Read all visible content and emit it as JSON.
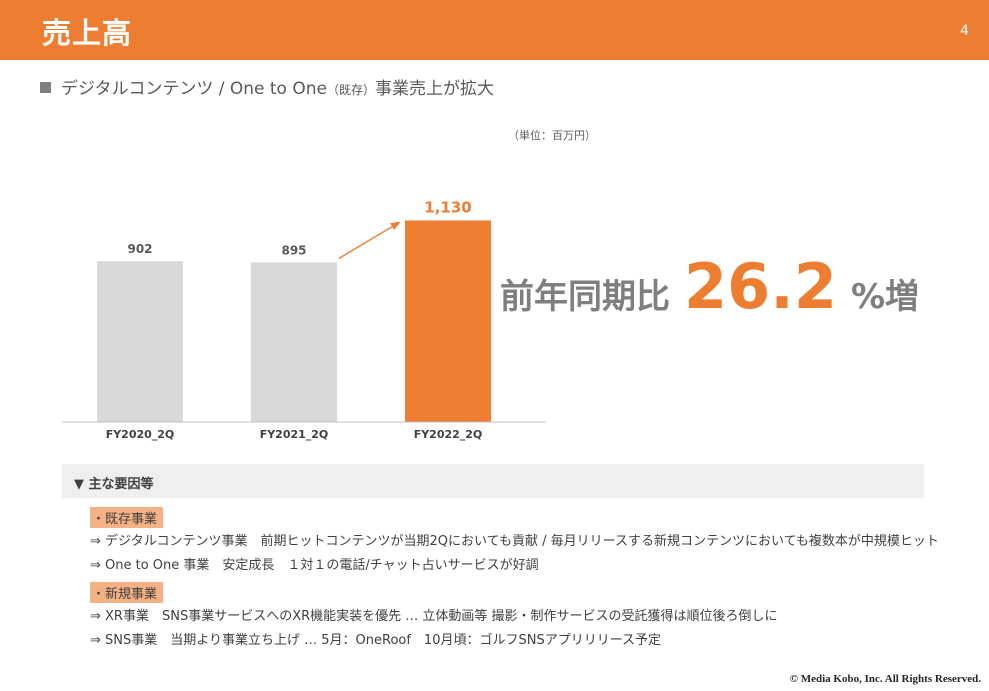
{
  "header": {
    "title": "売上高",
    "page_number": "4",
    "accent_color": "#ed7d31"
  },
  "subtitle": {
    "main": "デジタルコンテンツ / One to One",
    "small": "（既存）",
    "rest": "事業売上が拡大"
  },
  "unit_label": "（単位：百万円）",
  "chart_data": {
    "type": "bar",
    "categories": [
      "FY2020_2Q",
      "FY2021_2Q",
      "FY2022_2Q"
    ],
    "values": [
      902,
      895,
      1130
    ],
    "value_labels": [
      "902",
      "895",
      "1,130"
    ],
    "ylim": [
      0,
      1200
    ],
    "colors": [
      "#d9d9d9",
      "#d9d9d9",
      "#ed7d31"
    ],
    "highlight_index": 2,
    "grid": false,
    "xlabel": "",
    "ylabel": ""
  },
  "yoy": {
    "lead": "前年同期比",
    "value": "26.2",
    "tail": "%増"
  },
  "factors": {
    "heading": "▼ 主な要因等",
    "existing": {
      "tag": "・既存事業",
      "lines": [
        "⇒ デジタルコンテンツ事業　前期ヒットコンテンツが当期2Qにおいても貢献 / 毎月リリースする新規コンテンツにおいても複数本が中規模ヒット",
        "⇒ One to One 事業　安定成長　１対１の電話/チャット占いサービスが好調"
      ]
    },
    "new": {
      "tag": "・新規事業",
      "lines": [
        "⇒ XR事業　SNS事業サービスへのXR機能実装を優先 … 立体動画等 撮影・制作サービスの受託獲得は順位後ろ倒しに",
        "⇒ SNS事業　当期より事業立ち上げ … 5月：OneRoof　10月頃：ゴルフSNSアプリリリース予定"
      ]
    }
  },
  "footer": {
    "copyright": "©  Media Kobo, Inc. All Rights Reserved."
  }
}
